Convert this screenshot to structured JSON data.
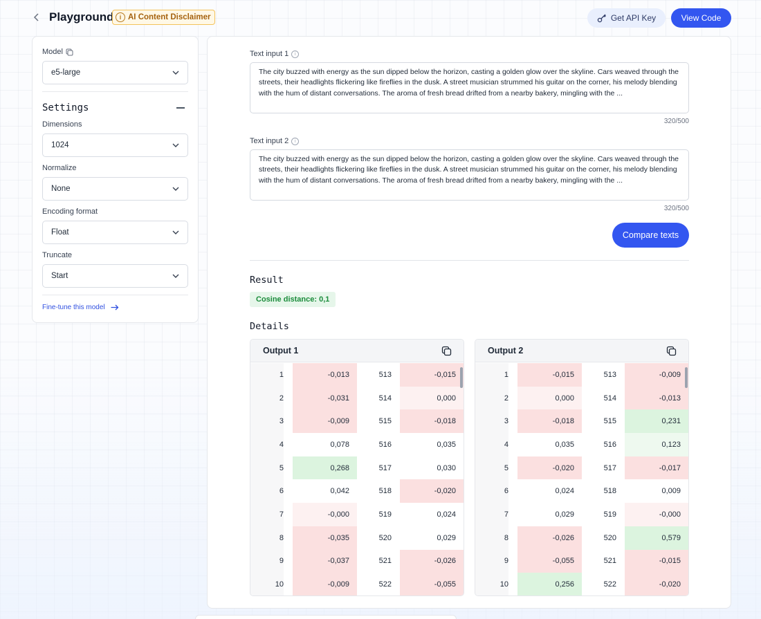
{
  "header": {
    "title": "Playground",
    "disclaimer": "AI Content Disclaimer",
    "api_key_label": "Get API Key",
    "view_code_label": "View Code"
  },
  "sidebar": {
    "model_label": "Model",
    "model_value": "e5-large",
    "settings_title": "Settings",
    "dimensions_label": "Dimensions",
    "dimensions_value": "1024",
    "normalize_label": "Normalize",
    "normalize_value": "None",
    "encoding_label": "Encoding format",
    "encoding_value": "Float",
    "truncate_label": "Truncate",
    "truncate_value": "Start",
    "finetune_label": "Fine-tune this model"
  },
  "inputs": {
    "input1_label": "Text input 1",
    "input1_text": "The city buzzed with energy as the sun dipped below the horizon, casting a golden glow over the skyline. Cars weaved through the streets, their headlights flickering like fireflies in the dusk. A street musician strummed his guitar on the corner, his melody blending with the hum of distant conversations. The aroma of fresh bread drifted from a nearby bakery, mingling with the ...",
    "input1_count": "320/500",
    "input2_label": "Text input 2",
    "input2_text": "The city buzzed with energy as the sun dipped below the horizon, casting a golden glow over the skyline. Cars weaved through the streets, their headlights flickering like fireflies in the dusk. A street musician strummed his guitar on the corner, his melody blending with the hum of distant conversations. The aroma of fresh bread drifted from a nearby bakery, mingling with the ...",
    "input2_count": "320/500",
    "compare_label": "Compare texts"
  },
  "result": {
    "title": "Result",
    "badge": "Cosine distance: 0,1",
    "details_title": "Details"
  },
  "outputs": [
    {
      "title": "Output 1",
      "rows": [
        {
          "i1": "1",
          "v1": "-0,013",
          "i2": "513",
          "v2": "-0,015"
        },
        {
          "i1": "2",
          "v1": "-0,031",
          "i2": "514",
          "v2": "0,000"
        },
        {
          "i1": "3",
          "v1": "-0,009",
          "i2": "515",
          "v2": "-0,018"
        },
        {
          "i1": "4",
          "v1": "0,078",
          "i2": "516",
          "v2": "0,035"
        },
        {
          "i1": "5",
          "v1": "0,268",
          "i2": "517",
          "v2": "0,030"
        },
        {
          "i1": "6",
          "v1": "0,042",
          "i2": "518",
          "v2": "-0,020"
        },
        {
          "i1": "7",
          "v1": "-0,000",
          "i2": "519",
          "v2": "0,024"
        },
        {
          "i1": "8",
          "v1": "-0,035",
          "i2": "520",
          "v2": "0,029"
        },
        {
          "i1": "9",
          "v1": "-0,037",
          "i2": "521",
          "v2": "-0,026"
        },
        {
          "i1": "10",
          "v1": "-0,009",
          "i2": "522",
          "v2": "-0,055"
        }
      ]
    },
    {
      "title": "Output 2",
      "rows": [
        {
          "i1": "1",
          "v1": "-0,015",
          "i2": "513",
          "v2": "-0,009"
        },
        {
          "i1": "2",
          "v1": "0,000",
          "i2": "514",
          "v2": "-0,013"
        },
        {
          "i1": "3",
          "v1": "-0,018",
          "i2": "515",
          "v2": "0,231"
        },
        {
          "i1": "4",
          "v1": "0,035",
          "i2": "516",
          "v2": "0,123"
        },
        {
          "i1": "5",
          "v1": "-0,020",
          "i2": "517",
          "v2": "-0,017"
        },
        {
          "i1": "6",
          "v1": "0,024",
          "i2": "518",
          "v2": "0,009"
        },
        {
          "i1": "7",
          "v1": "0,029",
          "i2": "519",
          "v2": "-0,000"
        },
        {
          "i1": "8",
          "v1": "-0,026",
          "i2": "520",
          "v2": "0,579"
        },
        {
          "i1": "9",
          "v1": "-0,055",
          "i2": "521",
          "v2": "-0,015"
        },
        {
          "i1": "10",
          "v1": "0,256",
          "i2": "522",
          "v2": "-0,020"
        }
      ]
    }
  ],
  "colors": {
    "accent": "#3356f0",
    "negative_strong": "#fbe0e0",
    "negative_weak": "#fdf1f1",
    "positive_strong": "#dcf4df",
    "positive_weak": "#eef9ef",
    "neutral": "#ffffff",
    "index_bg": "#f7f7f8"
  }
}
